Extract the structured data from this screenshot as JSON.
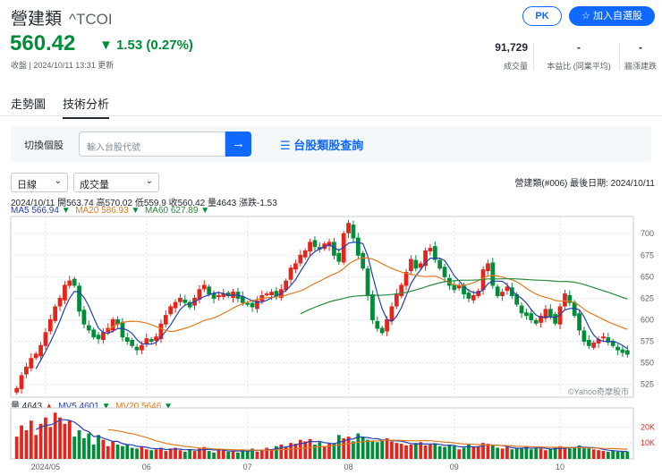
{
  "header": {
    "name": "營建類",
    "symbol": "^TCOI",
    "pk_label": "PK",
    "add_watch_label": "加入自選股",
    "price": "560.42",
    "change": "▼ 1.53 (0.27%)",
    "status": "收盤 | 2024/10/11 13:31 更新",
    "stats": [
      {
        "value": "91,729",
        "label": "成交量"
      },
      {
        "value": "-",
        "label": "本益比 (同業平均)"
      },
      {
        "value": "-",
        "label": "牆漲建跌"
      }
    ]
  },
  "tabs": [
    {
      "label": "走勢圖",
      "active": false
    },
    {
      "label": "技術分析",
      "active": true
    }
  ],
  "switcher": {
    "label": "切換個股",
    "placeholder": "輸入台股代號",
    "go_icon": "arrow-right-icon",
    "query_label": "台股類股查詢",
    "query_icon": "list-icon"
  },
  "controls": {
    "period": "日線",
    "indicator": "成交量",
    "chevron": "⌄"
  },
  "meta": "營建類(#006)  最後日期: 2024/10/11",
  "ohlc": "2024/10/11 開563.74 高570.02 低559.9 收560.42 量4643 漲跌-1.53",
  "ma_legend": [
    {
      "text": "MA5 566.94",
      "arrow": "▼"
    },
    {
      "text": "MA20 586.93",
      "arrow": "▼"
    },
    {
      "text": "MA60 627.89",
      "arrow": "▼"
    }
  ],
  "vol_legend": [
    {
      "text": "量 4643",
      "arrow": "▲"
    },
    {
      "text": "MV5 4601",
      "arrow": "▼"
    },
    {
      "text": "MV20 5646",
      "arrow": "▼"
    }
  ],
  "watermark": "©Yahoo奇摩股市",
  "colors": {
    "up": "#e5251c",
    "down": "#008c39",
    "ma5": "#2541b2",
    "ma20": "#e07b20",
    "ma60": "#2d8a3e",
    "accent": "#0f69ff"
  },
  "chart_data": {
    "type": "candlestick",
    "y_ticks": [
      525,
      550,
      575,
      600,
      625,
      650,
      675,
      700
    ],
    "ylim": [
      510,
      720
    ],
    "x_ticks": [
      "2024/05",
      "06",
      "07",
      "08",
      "09",
      "10"
    ],
    "closes": [
      520,
      535,
      545,
      555,
      560,
      570,
      585,
      600,
      615,
      625,
      640,
      645,
      640,
      610,
      595,
      588,
      580,
      578,
      585,
      590,
      600,
      595,
      580,
      575,
      570,
      565,
      570,
      578,
      575,
      580,
      595,
      605,
      615,
      620,
      625,
      620,
      615,
      625,
      635,
      640,
      630,
      625,
      628,
      630,
      628,
      632,
      625,
      620,
      618,
      615,
      622,
      628,
      630,
      632,
      628,
      635,
      645,
      660,
      665,
      675,
      680,
      690,
      685,
      682,
      688,
      690,
      675,
      668,
      700,
      712,
      695,
      675,
      660,
      628,
      600,
      590,
      585,
      600,
      615,
      630,
      640,
      655,
      670,
      660,
      665,
      680,
      683,
      670,
      660,
      650,
      640,
      635,
      640,
      630,
      625,
      628,
      633,
      658,
      665,
      640,
      628,
      632,
      638,
      628,
      618,
      608,
      605,
      600,
      596,
      604,
      612,
      604,
      596,
      615,
      630,
      620,
      605,
      588,
      575,
      570,
      573,
      577,
      580,
      574,
      570,
      565,
      562,
      560
    ],
    "vol_y_ticks": [
      "10K",
      "20K"
    ],
    "vol_ylim": [
      0,
      32000
    ],
    "volumes": [
      14000,
      21000,
      18000,
      24000,
      15000,
      22000,
      26000,
      20000,
      29000,
      26000,
      22000,
      24000,
      14000,
      18000,
      13000,
      16000,
      9000,
      15000,
      12000,
      8000,
      11000,
      9000,
      8000,
      9000,
      7000,
      6500,
      8000,
      6000,
      5500,
      6000,
      7000,
      5000,
      6500,
      7000,
      5500,
      4500,
      6000,
      5000,
      6500,
      7500,
      5000,
      4000,
      5500,
      6000,
      4500,
      5000,
      4000,
      6000,
      5000,
      6500,
      4500,
      5500,
      7000,
      6000,
      8000,
      9000,
      7500,
      10000,
      9500,
      12000,
      11000,
      12500,
      9000,
      10500,
      8000,
      9500,
      10000,
      15000,
      13000,
      14000,
      11000,
      16000,
      14000,
      12000,
      11000,
      10500,
      12000,
      13000,
      11000,
      10000,
      9500,
      8500,
      9000,
      10000,
      10500,
      8500,
      9000,
      9500,
      8000,
      7500,
      9000,
      8000,
      6000,
      7000,
      9000,
      7500,
      8000,
      10000,
      9500,
      8500,
      7000,
      6500,
      7500,
      6000,
      6500,
      7000,
      8000,
      6000,
      7000,
      6500,
      5500,
      6000,
      7000,
      8000,
      7000,
      6500,
      7500,
      8500,
      7000,
      6500,
      6000,
      5500,
      5000,
      4500,
      5000,
      4600,
      4700,
      4643
    ]
  }
}
